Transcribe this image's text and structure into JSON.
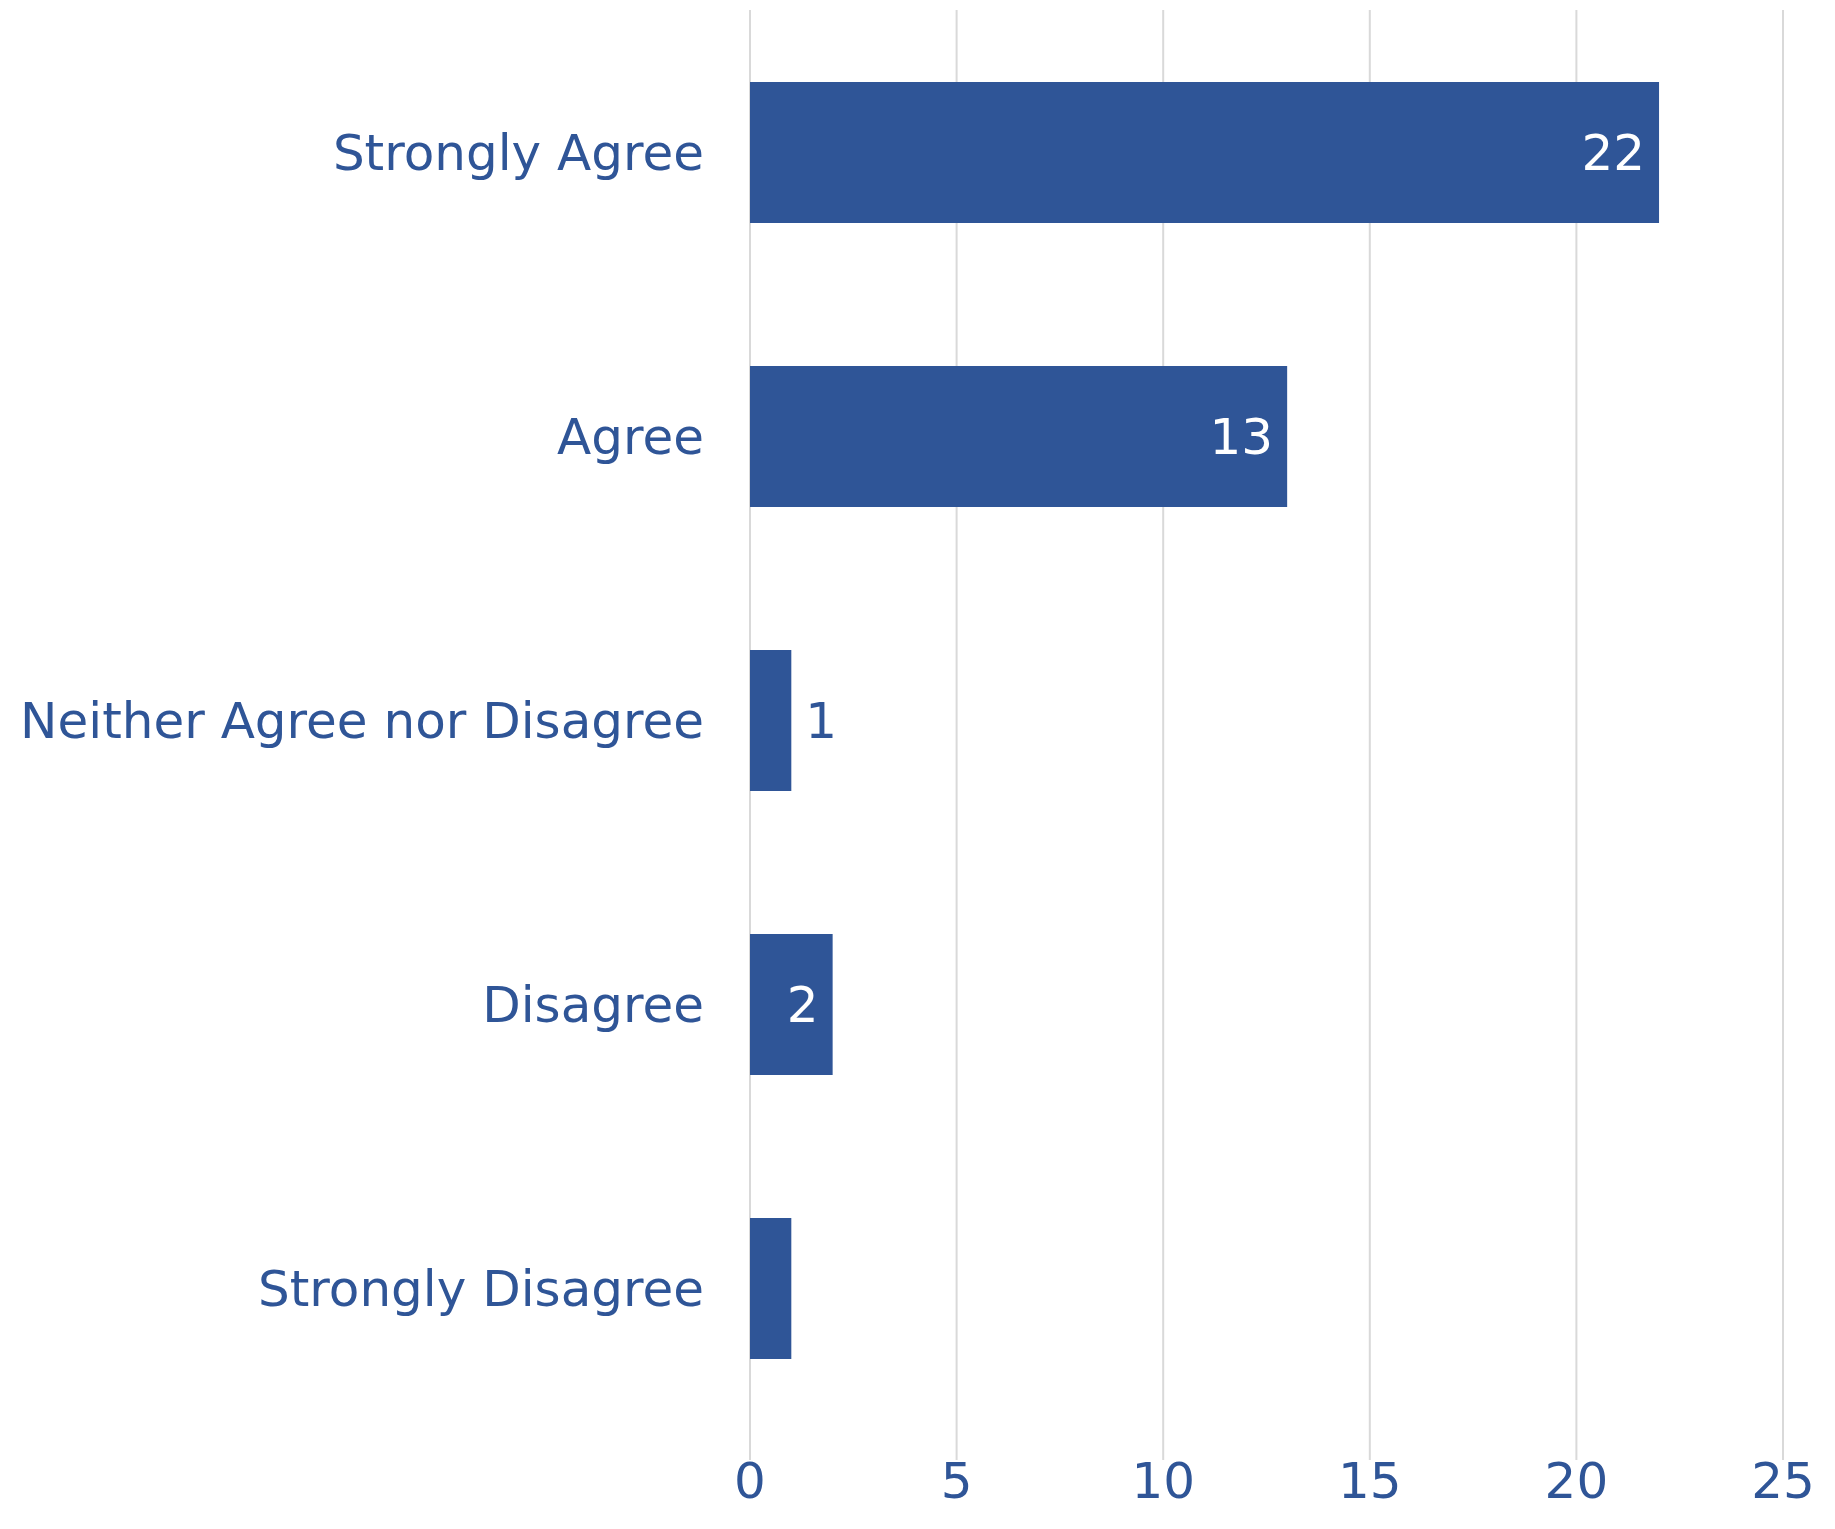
{
  "chart_data": {
    "type": "bar",
    "orientation": "horizontal",
    "categories": [
      "Strongly Agree",
      "Agree",
      "Neither Agree nor Disagree",
      "Disagree",
      "Strongly Disagree"
    ],
    "values": [
      22,
      13,
      1,
      2,
      1
    ],
    "value_labels": [
      "22",
      "13",
      "1",
      "2",
      null
    ],
    "color": "#2f5597",
    "xlim": [
      0,
      25
    ],
    "xticks": [
      0,
      5,
      10,
      15,
      20,
      25
    ],
    "grid": "x",
    "legend": false
  }
}
